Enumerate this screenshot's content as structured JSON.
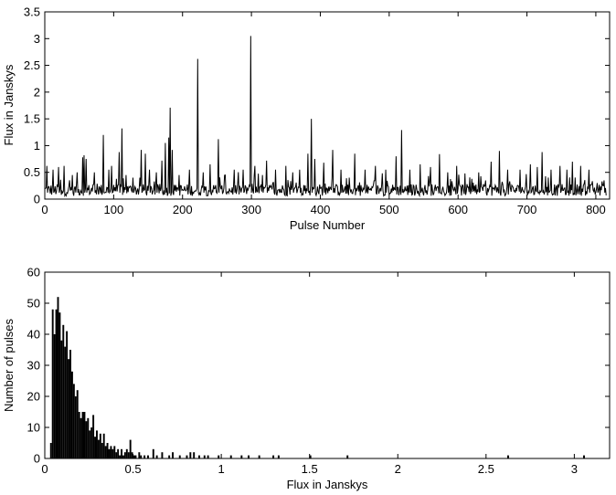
{
  "chart_data": [
    {
      "type": "line",
      "xlabel": "Pulse Number",
      "ylabel": "Flux in Janskys",
      "xlim": [
        0,
        820
      ],
      "ylim": [
        0,
        3.5
      ],
      "xticks": [
        0,
        100,
        200,
        300,
        400,
        500,
        600,
        700,
        800
      ],
      "yticks": [
        0,
        0.5,
        1,
        1.5,
        2,
        2.5,
        3,
        3.5
      ],
      "xtick_labels": [
        "0",
        "100",
        "200",
        "300",
        "400",
        "500",
        "600",
        "700",
        "800"
      ],
      "ytick_labels": [
        "0",
        "0.5",
        "1",
        "1.5",
        "2",
        "2.5",
        "3",
        "3.5"
      ],
      "grid": false,
      "peaks": [
        {
          "x": 3,
          "y": 0.62
        },
        {
          "x": 12,
          "y": 0.55
        },
        {
          "x": 20,
          "y": 0.6
        },
        {
          "x": 28,
          "y": 0.62
        },
        {
          "x": 40,
          "y": 0.45
        },
        {
          "x": 47,
          "y": 0.5
        },
        {
          "x": 55,
          "y": 0.78
        },
        {
          "x": 57,
          "y": 0.82
        },
        {
          "x": 60,
          "y": 0.75
        },
        {
          "x": 72,
          "y": 0.5
        },
        {
          "x": 85,
          "y": 1.2
        },
        {
          "x": 93,
          "y": 0.55
        },
        {
          "x": 97,
          "y": 0.62
        },
        {
          "x": 108,
          "y": 0.88
        },
        {
          "x": 112,
          "y": 1.32
        },
        {
          "x": 118,
          "y": 0.45
        },
        {
          "x": 128,
          "y": 0.4
        },
        {
          "x": 140,
          "y": 0.92
        },
        {
          "x": 146,
          "y": 0.85
        },
        {
          "x": 152,
          "y": 0.55
        },
        {
          "x": 162,
          "y": 0.5
        },
        {
          "x": 170,
          "y": 0.72
        },
        {
          "x": 175,
          "y": 1.05
        },
        {
          "x": 180,
          "y": 1.15
        },
        {
          "x": 182,
          "y": 1.71
        },
        {
          "x": 185,
          "y": 0.92
        },
        {
          "x": 195,
          "y": 0.45
        },
        {
          "x": 210,
          "y": 0.55
        },
        {
          "x": 222,
          "y": 2.62
        },
        {
          "x": 230,
          "y": 0.5
        },
        {
          "x": 240,
          "y": 0.65
        },
        {
          "x": 252,
          "y": 1.12
        },
        {
          "x": 262,
          "y": 0.45
        },
        {
          "x": 275,
          "y": 0.55
        },
        {
          "x": 288,
          "y": 0.55
        },
        {
          "x": 299,
          "y": 3.05
        },
        {
          "x": 305,
          "y": 0.62
        },
        {
          "x": 316,
          "y": 0.45
        },
        {
          "x": 322,
          "y": 0.72
        },
        {
          "x": 335,
          "y": 0.55
        },
        {
          "x": 350,
          "y": 0.62
        },
        {
          "x": 360,
          "y": 0.5
        },
        {
          "x": 370,
          "y": 0.55
        },
        {
          "x": 382,
          "y": 0.85
        },
        {
          "x": 387,
          "y": 1.5
        },
        {
          "x": 392,
          "y": 0.75
        },
        {
          "x": 405,
          "y": 0.68
        },
        {
          "x": 418,
          "y": 0.92
        },
        {
          "x": 430,
          "y": 0.55
        },
        {
          "x": 450,
          "y": 0.85
        },
        {
          "x": 465,
          "y": 0.55
        },
        {
          "x": 480,
          "y": 0.62
        },
        {
          "x": 495,
          "y": 0.55
        },
        {
          "x": 510,
          "y": 0.8
        },
        {
          "x": 518,
          "y": 1.29
        },
        {
          "x": 530,
          "y": 0.55
        },
        {
          "x": 545,
          "y": 0.65
        },
        {
          "x": 560,
          "y": 0.6
        },
        {
          "x": 573,
          "y": 0.84
        },
        {
          "x": 585,
          "y": 0.5
        },
        {
          "x": 598,
          "y": 0.62
        },
        {
          "x": 610,
          "y": 0.48
        },
        {
          "x": 630,
          "y": 0.5
        },
        {
          "x": 648,
          "y": 0.7
        },
        {
          "x": 660,
          "y": 0.9
        },
        {
          "x": 672,
          "y": 0.55
        },
        {
          "x": 690,
          "y": 0.55
        },
        {
          "x": 705,
          "y": 0.65
        },
        {
          "x": 715,
          "y": 0.6
        },
        {
          "x": 722,
          "y": 0.88
        },
        {
          "x": 735,
          "y": 0.55
        },
        {
          "x": 748,
          "y": 0.62
        },
        {
          "x": 758,
          "y": 0.55
        },
        {
          "x": 766,
          "y": 0.7
        },
        {
          "x": 778,
          "y": 0.62
        },
        {
          "x": 790,
          "y": 0.55
        },
        {
          "x": 802,
          "y": 0.3
        },
        {
          "x": 812,
          "y": 0.35
        }
      ]
    },
    {
      "type": "bar",
      "xlabel": "Flux in Janskys",
      "ylabel": "Number of pulses",
      "xlim": [
        0,
        3.2
      ],
      "ylim": [
        0,
        60
      ],
      "xticks": [
        0,
        0.5,
        1,
        1.5,
        2,
        2.5,
        3
      ],
      "yticks": [
        0,
        10,
        20,
        30,
        40,
        50,
        60
      ],
      "xtick_labels": [
        "0",
        "0.5",
        "1",
        "1.5",
        "2",
        "2.5",
        "3"
      ],
      "ytick_labels": [
        "0",
        "10",
        "20",
        "30",
        "40",
        "50",
        "60"
      ],
      "grid": false,
      "bin_width": 0.01,
      "bins": [
        {
          "x": 0.035,
          "y": 5
        },
        {
          "x": 0.045,
          "y": 48
        },
        {
          "x": 0.055,
          "y": 40
        },
        {
          "x": 0.065,
          "y": 48
        },
        {
          "x": 0.075,
          "y": 52
        },
        {
          "x": 0.085,
          "y": 47
        },
        {
          "x": 0.095,
          "y": 38
        },
        {
          "x": 0.105,
          "y": 43
        },
        {
          "x": 0.115,
          "y": 36
        },
        {
          "x": 0.125,
          "y": 41
        },
        {
          "x": 0.135,
          "y": 32
        },
        {
          "x": 0.145,
          "y": 35
        },
        {
          "x": 0.155,
          "y": 28
        },
        {
          "x": 0.165,
          "y": 24
        },
        {
          "x": 0.175,
          "y": 20
        },
        {
          "x": 0.185,
          "y": 22
        },
        {
          "x": 0.195,
          "y": 15
        },
        {
          "x": 0.205,
          "y": 13
        },
        {
          "x": 0.215,
          "y": 15
        },
        {
          "x": 0.225,
          "y": 15
        },
        {
          "x": 0.235,
          "y": 12
        },
        {
          "x": 0.245,
          "y": 13
        },
        {
          "x": 0.255,
          "y": 9
        },
        {
          "x": 0.265,
          "y": 10
        },
        {
          "x": 0.275,
          "y": 14
        },
        {
          "x": 0.285,
          "y": 7
        },
        {
          "x": 0.295,
          "y": 9
        },
        {
          "x": 0.305,
          "y": 6
        },
        {
          "x": 0.315,
          "y": 8
        },
        {
          "x": 0.325,
          "y": 5
        },
        {
          "x": 0.335,
          "y": 8
        },
        {
          "x": 0.345,
          "y": 4
        },
        {
          "x": 0.355,
          "y": 5
        },
        {
          "x": 0.365,
          "y": 3
        },
        {
          "x": 0.375,
          "y": 4
        },
        {
          "x": 0.385,
          "y": 3
        },
        {
          "x": 0.395,
          "y": 4
        },
        {
          "x": 0.405,
          "y": 2
        },
        {
          "x": 0.415,
          "y": 3
        },
        {
          "x": 0.425,
          "y": 1
        },
        {
          "x": 0.435,
          "y": 3
        },
        {
          "x": 0.445,
          "y": 1
        },
        {
          "x": 0.455,
          "y": 2
        },
        {
          "x": 0.465,
          "y": 3
        },
        {
          "x": 0.475,
          "y": 2
        },
        {
          "x": 0.485,
          "y": 6
        },
        {
          "x": 0.495,
          "y": 2
        },
        {
          "x": 0.505,
          "y": 1
        },
        {
          "x": 0.515,
          "y": 1
        },
        {
          "x": 0.535,
          "y": 2
        },
        {
          "x": 0.545,
          "y": 1
        },
        {
          "x": 0.565,
          "y": 1
        },
        {
          "x": 0.585,
          "y": 1
        },
        {
          "x": 0.615,
          "y": 3
        },
        {
          "x": 0.635,
          "y": 1
        },
        {
          "x": 0.665,
          "y": 2
        },
        {
          "x": 0.705,
          "y": 1
        },
        {
          "x": 0.725,
          "y": 2
        },
        {
          "x": 0.765,
          "y": 1
        },
        {
          "x": 0.805,
          "y": 1
        },
        {
          "x": 0.825,
          "y": 2
        },
        {
          "x": 0.845,
          "y": 2
        },
        {
          "x": 0.875,
          "y": 1
        },
        {
          "x": 0.905,
          "y": 1
        },
        {
          "x": 0.925,
          "y": 1
        },
        {
          "x": 0.985,
          "y": 1
        },
        {
          "x": 1.055,
          "y": 1
        },
        {
          "x": 1.115,
          "y": 1
        },
        {
          "x": 1.155,
          "y": 1
        },
        {
          "x": 1.215,
          "y": 1
        },
        {
          "x": 1.295,
          "y": 1
        },
        {
          "x": 1.325,
          "y": 1
        },
        {
          "x": 1.505,
          "y": 1
        },
        {
          "x": 1.715,
          "y": 1
        },
        {
          "x": 2.625,
          "y": 1
        },
        {
          "x": 3.055,
          "y": 1
        }
      ]
    }
  ]
}
